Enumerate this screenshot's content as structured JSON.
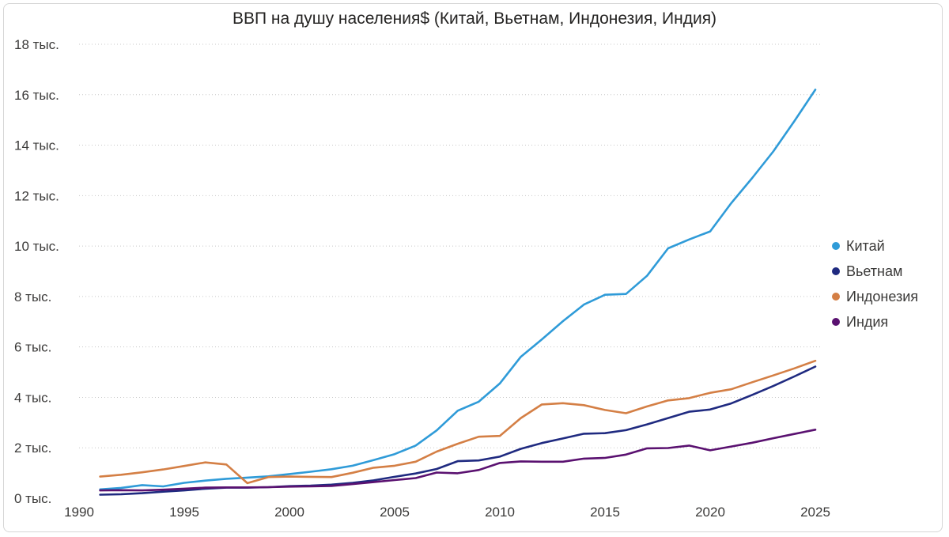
{
  "chart_data": {
    "type": "line",
    "title": "ВВП на душу населения$ (Китай, Вьетнам, Индонезия, Индия)",
    "xlabel": "",
    "ylabel": "",
    "xlim": [
      1990,
      2025
    ],
    "ylim": [
      0,
      18000
    ],
    "x_ticks": [
      1990,
      1995,
      2000,
      2005,
      2010,
      2015,
      2020,
      2025
    ],
    "y_ticks": [
      {
        "value": 0,
        "label": "0 тыс."
      },
      {
        "value": 2000,
        "label": "2 тыс."
      },
      {
        "value": 4000,
        "label": "4 тыс."
      },
      {
        "value": 6000,
        "label": "6 тыс."
      },
      {
        "value": 8000,
        "label": "8 тыс."
      },
      {
        "value": 10000,
        "label": "10 тыс."
      },
      {
        "value": 12000,
        "label": "12 тыс."
      },
      {
        "value": 14000,
        "label": "14 тыс."
      },
      {
        "value": 16000,
        "label": "16 тыс."
      },
      {
        "value": 18000,
        "label": "18 тыс."
      }
    ],
    "grid": true,
    "legend_position": "right",
    "x": [
      1991,
      1992,
      1993,
      1994,
      1995,
      1996,
      1997,
      1998,
      1999,
      2000,
      2001,
      2002,
      2003,
      2004,
      2005,
      2006,
      2007,
      2008,
      2009,
      2010,
      2011,
      2012,
      2013,
      2014,
      2015,
      2016,
      2017,
      2018,
      2019,
      2020,
      2021,
      2022,
      2023,
      2024,
      2025
    ],
    "series": [
      {
        "name": "Китай",
        "color": "#2f9bd8",
        "values": [
          350,
          410,
          520,
          470,
          610,
          700,
          770,
          820,
          870,
          960,
          1050,
          1150,
          1290,
          1510,
          1750,
          2090,
          2690,
          3470,
          3830,
          4550,
          5610,
          6300,
          7020,
          7680,
          8070,
          8100,
          8820,
          9910,
          10260,
          10580,
          11700,
          12700,
          13750,
          14950,
          16200
        ]
      },
      {
        "name": "Вьетнам",
        "color": "#1f2a80",
        "values": [
          140,
          160,
          200,
          260,
          310,
          380,
          420,
          420,
          440,
          480,
          500,
          540,
          610,
          710,
          850,
          980,
          1160,
          1470,
          1500,
          1650,
          1960,
          2190,
          2370,
          2560,
          2580,
          2700,
          2930,
          3180,
          3430,
          3520,
          3760,
          4100,
          4450,
          4830,
          5220
        ]
      },
      {
        "name": "Индонезия",
        "color": "#d47f45",
        "values": [
          860,
          930,
          1030,
          1140,
          1280,
          1420,
          1340,
          600,
          840,
          860,
          850,
          840,
          1010,
          1210,
          1290,
          1450,
          1850,
          2160,
          2440,
          2470,
          3180,
          3720,
          3770,
          3690,
          3500,
          3370,
          3640,
          3880,
          3970,
          4180,
          4320,
          4600,
          4870,
          5150,
          5450
        ]
      },
      {
        "name": "Индия",
        "color": "#5a1170",
        "values": [
          310,
          320,
          310,
          340,
          380,
          420,
          430,
          430,
          440,
          460,
          470,
          490,
          560,
          640,
          720,
          800,
          1020,
          990,
          1120,
          1400,
          1460,
          1450,
          1450,
          1570,
          1600,
          1730,
          1980,
          1990,
          2090,
          1900,
          2050,
          2200,
          2380,
          2550,
          2720
        ]
      }
    ]
  }
}
